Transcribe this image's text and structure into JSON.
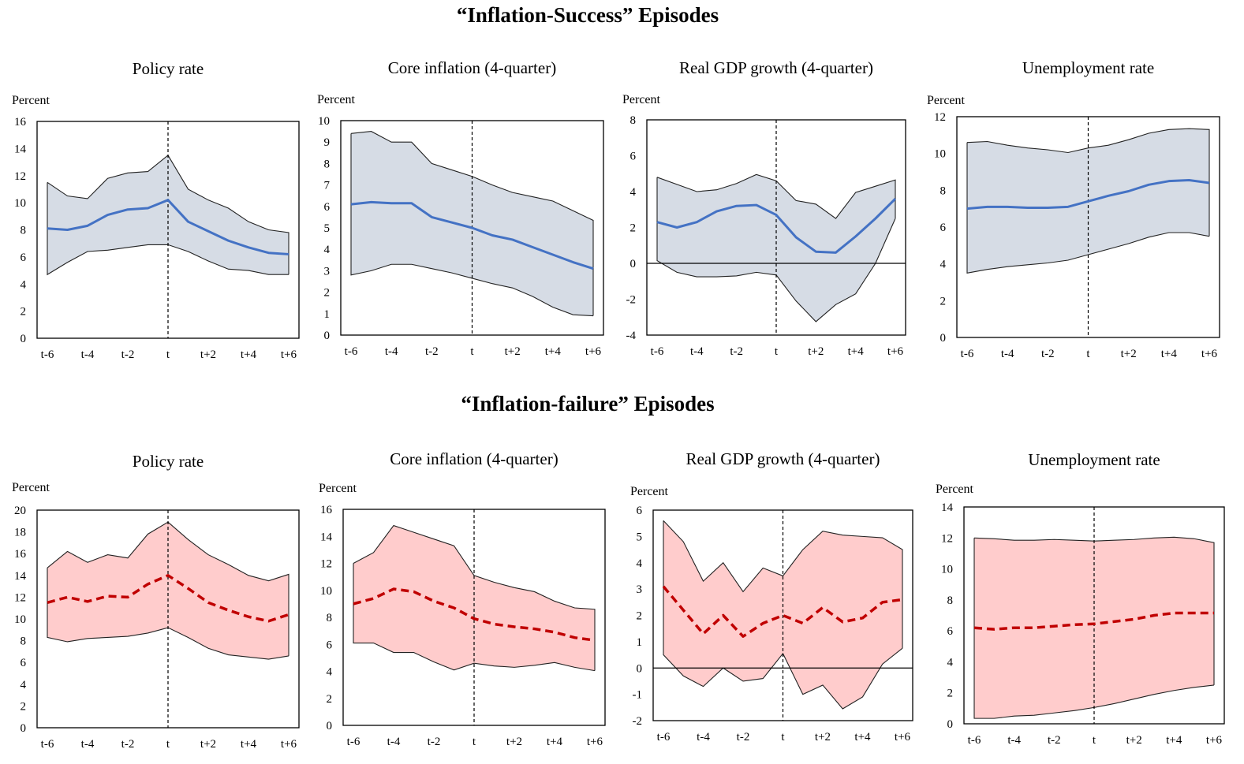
{
  "sections": {
    "success_title": "“Inflation-Success” Episodes",
    "failure_title": "“Inflation-failure” Episodes"
  },
  "colors": {
    "success_band": "#d6dce5",
    "success_line": "#4472c4",
    "failure_band": "#ffcccc",
    "failure_line": "#c00000",
    "band_edge": "#000000"
  },
  "chart_data": [
    {
      "id": "success-policy-rate",
      "group": "success",
      "type": "area",
      "title": "Policy rate",
      "ylabel": "Percent",
      "ylim": [
        0,
        16
      ],
      "yticks": [
        0,
        2,
        4,
        6,
        8,
        10,
        12,
        14,
        16
      ],
      "x": [
        "t-6",
        "t-5",
        "t-4",
        "t-3",
        "t-2",
        "t-1",
        "t",
        "t+1",
        "t+2",
        "t+3",
        "t+4",
        "t+5",
        "t+6"
      ],
      "xtick_labels": [
        "t-6",
        "t-4",
        "t-2",
        "t",
        "t+2",
        "t+4",
        "t+6"
      ],
      "event_marker": "t",
      "zero_line": false,
      "median_style": "solid",
      "series": [
        {
          "name": "Upper band",
          "values": [
            11.5,
            10.5,
            10.3,
            11.8,
            12.2,
            12.3,
            13.5,
            11.0,
            10.2,
            9.6,
            8.6,
            8.0,
            7.8
          ]
        },
        {
          "name": "Median",
          "values": [
            8.1,
            8.0,
            8.3,
            9.1,
            9.5,
            9.6,
            10.2,
            8.6,
            7.9,
            7.2,
            6.7,
            6.3,
            6.2
          ]
        },
        {
          "name": "Lower band",
          "values": [
            4.7,
            5.6,
            6.4,
            6.5,
            6.7,
            6.9,
            6.9,
            6.4,
            5.7,
            5.1,
            5.0,
            4.7,
            4.7
          ]
        }
      ]
    },
    {
      "id": "success-core-inflation",
      "group": "success",
      "type": "area",
      "title": "Core inflation  (4-quarter)",
      "ylabel": "Percent",
      "ylim": [
        0,
        10
      ],
      "yticks": [
        0,
        1,
        2,
        3,
        4,
        5,
        6,
        7,
        8,
        9,
        10
      ],
      "x": [
        "t-6",
        "t-5",
        "t-4",
        "t-3",
        "t-2",
        "t-1",
        "t",
        "t+1",
        "t+2",
        "t+3",
        "t+4",
        "t+5",
        "t+6"
      ],
      "xtick_labels": [
        "t-6",
        "t-4",
        "t-2",
        "t",
        "t+2",
        "t+4",
        "t+6"
      ],
      "event_marker": "t",
      "zero_line": false,
      "median_style": "solid",
      "series": [
        {
          "name": "Upper band",
          "values": [
            9.4,
            9.5,
            9.0,
            9.0,
            8.0,
            7.7,
            7.4,
            7.0,
            6.65,
            6.45,
            6.25,
            5.8,
            5.35
          ]
        },
        {
          "name": "Median",
          "values": [
            6.1,
            6.2,
            6.15,
            6.15,
            5.5,
            5.25,
            5.0,
            4.65,
            4.45,
            4.1,
            3.75,
            3.4,
            3.1
          ]
        },
        {
          "name": "Lower band",
          "values": [
            2.8,
            3.0,
            3.3,
            3.3,
            3.1,
            2.9,
            2.65,
            2.4,
            2.2,
            1.8,
            1.3,
            0.95,
            0.9
          ]
        }
      ]
    },
    {
      "id": "success-real-gdp",
      "group": "success",
      "type": "area",
      "title": "Real GDP growth (4-quarter)",
      "ylabel": "Percent",
      "ylim": [
        -4,
        8
      ],
      "yticks": [
        -4,
        -2,
        0,
        2,
        4,
        6,
        8
      ],
      "x": [
        "t-6",
        "t-5",
        "t-4",
        "t-3",
        "t-2",
        "t-1",
        "t",
        "t+1",
        "t+2",
        "t+3",
        "t+4",
        "t+5",
        "t+6"
      ],
      "xtick_labels": [
        "t-6",
        "t-4",
        "t-2",
        "t",
        "t+2",
        "t+4",
        "t+6"
      ],
      "event_marker": "t",
      "zero_line": true,
      "median_style": "solid",
      "series": [
        {
          "name": "Upper band",
          "values": [
            4.8,
            4.4,
            4.0,
            4.1,
            4.45,
            4.95,
            4.6,
            3.5,
            3.3,
            2.5,
            3.95,
            4.3,
            4.65
          ]
        },
        {
          "name": "Median",
          "values": [
            2.3,
            2.0,
            2.3,
            2.9,
            3.2,
            3.25,
            2.7,
            1.45,
            0.65,
            0.6,
            1.5,
            2.5,
            3.6
          ]
        },
        {
          "name": "Lower band",
          "values": [
            0.15,
            -0.5,
            -0.75,
            -0.75,
            -0.7,
            -0.5,
            -0.65,
            -2.1,
            -3.25,
            -2.3,
            -1.7,
            0.0,
            2.5
          ]
        }
      ]
    },
    {
      "id": "success-unemployment",
      "group": "success",
      "type": "area",
      "title": "Unemployment  rate",
      "ylabel": "Percent",
      "ylim": [
        0,
        12
      ],
      "yticks": [
        0,
        2,
        4,
        6,
        8,
        10,
        12
      ],
      "x": [
        "t-6",
        "t-5",
        "t-4",
        "t-3",
        "t-2",
        "t-1",
        "t",
        "t+1",
        "t+2",
        "t+3",
        "t+4",
        "t+5",
        "t+6"
      ],
      "xtick_labels": [
        "t-6",
        "t-4",
        "t-2",
        "t",
        "t+2",
        "t+4",
        "t+6"
      ],
      "event_marker": "t",
      "zero_line": false,
      "median_style": "solid",
      "series": [
        {
          "name": "Upper band",
          "values": [
            10.6,
            10.65,
            10.45,
            10.3,
            10.2,
            10.05,
            10.3,
            10.45,
            10.75,
            11.1,
            11.3,
            11.35,
            11.3
          ]
        },
        {
          "name": "Median",
          "values": [
            7.0,
            7.1,
            7.1,
            7.05,
            7.05,
            7.1,
            7.4,
            7.7,
            7.95,
            8.3,
            8.5,
            8.55,
            8.4
          ]
        },
        {
          "name": "Lower band",
          "values": [
            3.5,
            3.7,
            3.85,
            3.95,
            4.05,
            4.2,
            4.5,
            4.8,
            5.1,
            5.45,
            5.7,
            5.7,
            5.5
          ]
        }
      ]
    },
    {
      "id": "failure-policy-rate",
      "group": "failure",
      "type": "area",
      "title": "Policy rate",
      "ylabel": "Percent",
      "ylim": [
        0,
        20
      ],
      "yticks": [
        0,
        2,
        4,
        6,
        8,
        10,
        12,
        14,
        16,
        18,
        20
      ],
      "x": [
        "t-6",
        "t-5",
        "t-4",
        "t-3",
        "t-2",
        "t-1",
        "t",
        "t+1",
        "t+2",
        "t+3",
        "t+4",
        "t+5",
        "t+6"
      ],
      "xtick_labels": [
        "t-6",
        "t-4",
        "t-2",
        "t",
        "t+2",
        "t+4",
        "t+6"
      ],
      "event_marker": "t",
      "zero_line": false,
      "median_style": "dashed",
      "series": [
        {
          "name": "Upper band",
          "values": [
            14.7,
            16.2,
            15.2,
            15.9,
            15.6,
            17.8,
            18.9,
            17.3,
            15.9,
            15.0,
            14.0,
            13.5,
            14.1
          ]
        },
        {
          "name": "Median",
          "values": [
            11.5,
            12.0,
            11.6,
            12.1,
            12.0,
            13.2,
            14.0,
            12.8,
            11.5,
            10.8,
            10.2,
            9.8,
            10.4
          ]
        },
        {
          "name": "Lower band",
          "values": [
            8.3,
            7.9,
            8.2,
            8.3,
            8.4,
            8.7,
            9.2,
            8.3,
            7.3,
            6.7,
            6.5,
            6.3,
            6.6
          ]
        }
      ]
    },
    {
      "id": "failure-core-inflation",
      "group": "failure",
      "type": "area",
      "title": "Core inflation  (4-quarter)",
      "ylabel": "Percent",
      "ylim": [
        0,
        16
      ],
      "yticks": [
        0,
        2,
        4,
        6,
        8,
        10,
        12,
        14,
        16
      ],
      "x": [
        "t-6",
        "t-5",
        "t-4",
        "t-3",
        "t-2",
        "t-1",
        "t",
        "t+1",
        "t+2",
        "t+3",
        "t+4",
        "t+5",
        "t+6"
      ],
      "xtick_labels": [
        "t-6",
        "t-4",
        "t-2",
        "t",
        "t+2",
        "t+4",
        "t+6"
      ],
      "event_marker": "t",
      "zero_line": false,
      "median_style": "dashed",
      "series": [
        {
          "name": "Upper band",
          "values": [
            12.0,
            12.8,
            14.8,
            14.3,
            13.8,
            13.3,
            11.1,
            10.6,
            10.2,
            9.9,
            9.2,
            8.7,
            8.6
          ]
        },
        {
          "name": "Median",
          "values": [
            9.0,
            9.4,
            10.1,
            9.9,
            9.2,
            8.7,
            7.9,
            7.5,
            7.3,
            7.15,
            6.9,
            6.5,
            6.3
          ]
        },
        {
          "name": "Lower band",
          "values": [
            6.1,
            6.1,
            5.4,
            5.4,
            4.7,
            4.1,
            4.6,
            4.4,
            4.3,
            4.45,
            4.65,
            4.3,
            4.05
          ]
        }
      ]
    },
    {
      "id": "failure-real-gdp",
      "group": "failure",
      "type": "area",
      "title": "Real GDP growth (4-quarter)",
      "ylabel": "Percent",
      "ylim": [
        -2,
        6
      ],
      "yticks": [
        -2,
        -1,
        0,
        1,
        2,
        3,
        4,
        5,
        6
      ],
      "x": [
        "t-6",
        "t-5",
        "t-4",
        "t-3",
        "t-2",
        "t-1",
        "t",
        "t+1",
        "t+2",
        "t+3",
        "t+4",
        "t+5",
        "t+6"
      ],
      "xtick_labels": [
        "t-6",
        "t-4",
        "t-2",
        "t",
        "t+2",
        "t+4",
        "t+6"
      ],
      "event_marker": "t",
      "zero_line": true,
      "median_style": "dashed",
      "series": [
        {
          "name": "Upper band",
          "values": [
            5.6,
            4.8,
            3.3,
            4.0,
            2.9,
            3.8,
            3.5,
            4.5,
            5.2,
            5.05,
            5.0,
            4.95,
            4.5
          ]
        },
        {
          "name": "Median",
          "values": [
            3.1,
            2.2,
            1.3,
            2.0,
            1.2,
            1.7,
            2.0,
            1.7,
            2.3,
            1.75,
            1.9,
            2.5,
            2.6
          ]
        },
        {
          "name": "Lower band",
          "values": [
            0.5,
            -0.3,
            -0.7,
            0.0,
            -0.5,
            -0.4,
            0.55,
            -1.0,
            -0.65,
            -1.55,
            -1.1,
            0.15,
            0.75
          ]
        }
      ]
    },
    {
      "id": "failure-unemployment",
      "group": "failure",
      "type": "area",
      "title": "Unemployment  rate",
      "ylabel": "Percent",
      "ylim": [
        0,
        14
      ],
      "yticks": [
        0,
        2,
        4,
        6,
        8,
        10,
        12,
        14
      ],
      "x": [
        "t-6",
        "t-5",
        "t-4",
        "t-3",
        "t-2",
        "t-1",
        "t",
        "t+1",
        "t+2",
        "t+3",
        "t+4",
        "t+5",
        "t+6"
      ],
      "xtick_labels": [
        "t-6",
        "t-4",
        "t-2",
        "t",
        "t+2",
        "t+4",
        "t+6"
      ],
      "event_marker": "t",
      "zero_line": false,
      "median_style": "dashed",
      "series": [
        {
          "name": "Upper band",
          "values": [
            12.0,
            11.95,
            11.85,
            11.85,
            11.9,
            11.85,
            11.8,
            11.85,
            11.9,
            12.0,
            12.05,
            11.95,
            11.7
          ]
        },
        {
          "name": "Median",
          "values": [
            6.2,
            6.1,
            6.2,
            6.2,
            6.3,
            6.4,
            6.45,
            6.6,
            6.75,
            7.0,
            7.15,
            7.15,
            7.15
          ]
        },
        {
          "name": "Lower band",
          "values": [
            0.35,
            0.35,
            0.5,
            0.55,
            0.7,
            0.85,
            1.05,
            1.3,
            1.6,
            1.9,
            2.15,
            2.35,
            2.5
          ]
        }
      ]
    }
  ]
}
